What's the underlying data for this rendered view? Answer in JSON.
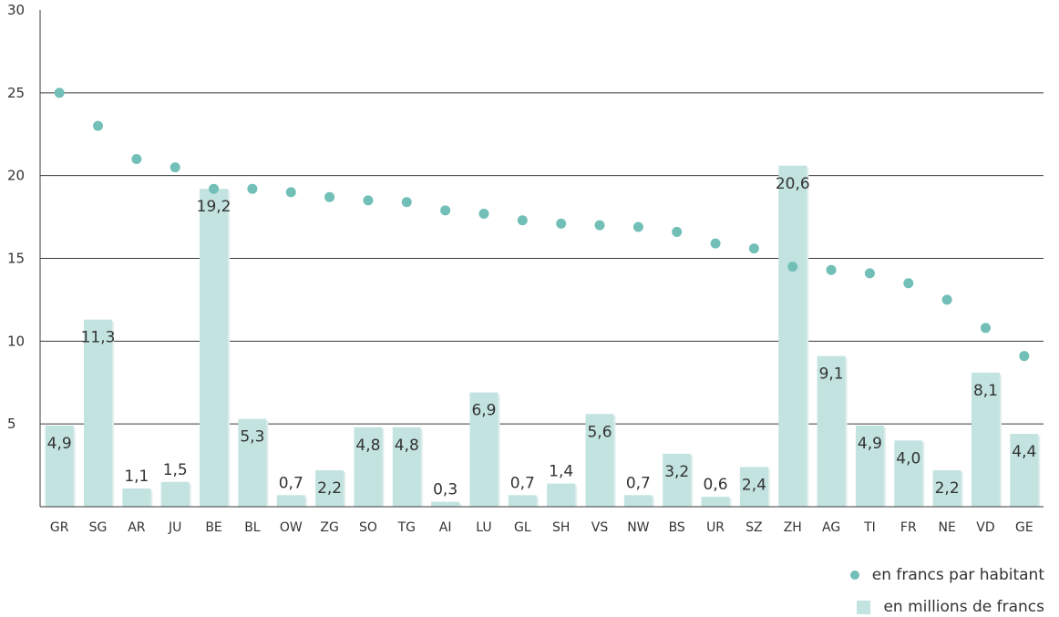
{
  "chart_data": {
    "type": "bar",
    "categories": [
      "GR",
      "SG",
      "AR",
      "JU",
      "BE",
      "BL",
      "OW",
      "ZG",
      "SO",
      "TG",
      "AI",
      "LU",
      "GL",
      "SH",
      "VS",
      "NW",
      "BS",
      "UR",
      "SZ",
      "ZH",
      "AG",
      "TI",
      "FR",
      "NE",
      "VD",
      "GE"
    ],
    "series": [
      {
        "name": "en millions de francs",
        "kind": "bar",
        "values": [
          4.9,
          11.3,
          1.1,
          1.5,
          19.2,
          5.3,
          0.7,
          2.2,
          4.8,
          4.8,
          0.3,
          6.9,
          0.7,
          1.4,
          5.6,
          0.7,
          3.2,
          0.6,
          2.4,
          20.6,
          9.1,
          4.9,
          4.0,
          2.2,
          8.1,
          4.4
        ],
        "labels": [
          "4,9",
          "11,3",
          "1,1",
          "1,5",
          "19,2",
          "5,3",
          "0,7",
          "2,2",
          "4,8",
          "4,8",
          "0,3",
          "6,9",
          "0,7",
          "1,4",
          "5,6",
          "0,7",
          "3,2",
          "0,6",
          "2,4",
          "20,6",
          "9,1",
          "4,9",
          "4,0",
          "2,2",
          "8,1",
          "4,4"
        ],
        "color": "#c2e3e0"
      },
      {
        "name": "en francs par habitant",
        "kind": "scatter",
        "values": [
          25.0,
          23.0,
          21.0,
          20.5,
          19.2,
          19.2,
          19.0,
          18.7,
          18.5,
          18.4,
          17.9,
          17.7,
          17.3,
          17.1,
          17.0,
          16.9,
          16.6,
          15.9,
          15.6,
          14.5,
          14.3,
          14.1,
          13.5,
          12.5,
          10.8,
          9.1
        ],
        "color": "#72bfb8"
      }
    ],
    "yticks": [
      30,
      25,
      20,
      15,
      10,
      5
    ],
    "ylim": [
      0,
      30
    ],
    "grid": true,
    "legend": {
      "placement": "bottom-right",
      "entries": [
        {
          "label": "en francs par habitant",
          "marker": "dot"
        },
        {
          "label": "en millions de francs",
          "marker": "square"
        }
      ]
    }
  }
}
